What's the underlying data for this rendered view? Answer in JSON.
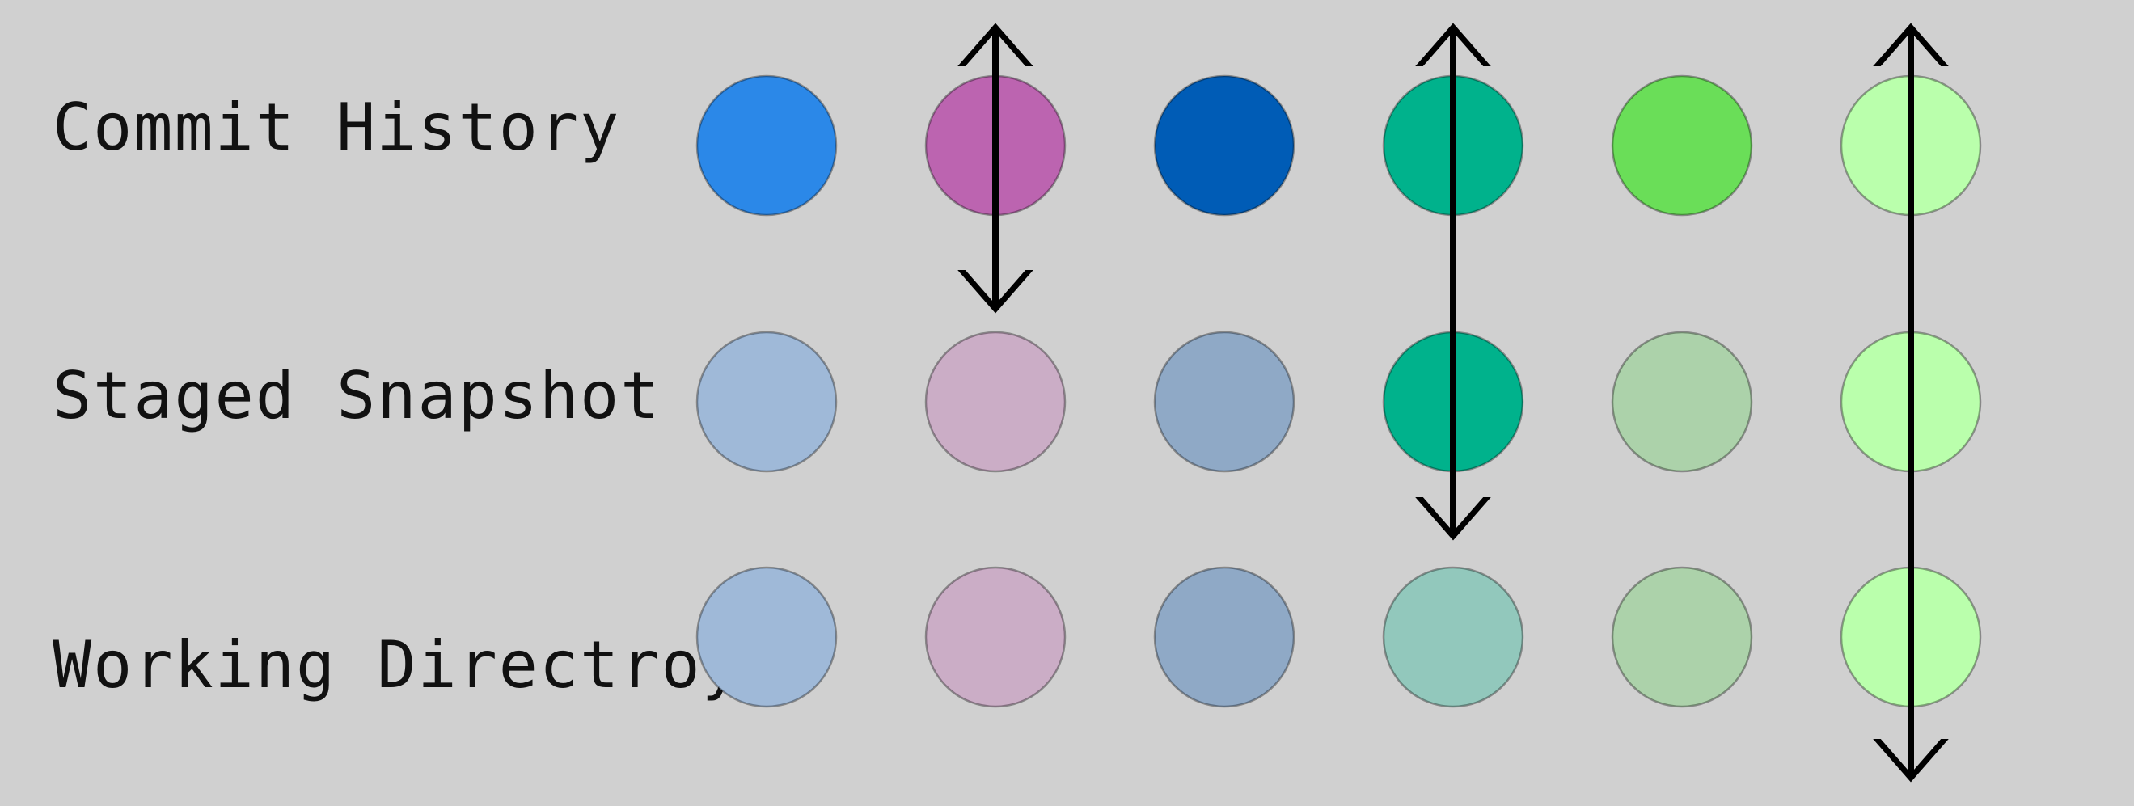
{
  "rows": [
    {
      "label": "Commit History",
      "circles": [
        "#2b88e8",
        "#bc64b0",
        "#005cb6",
        "#00b28c",
        "#6ade58",
        "#baffac"
      ]
    },
    {
      "label": "Staged Snapshot",
      "circles": [
        "#9fb9d8",
        "#cbadc6",
        "#8fa9c6",
        "#00b28c",
        "#acd2aa",
        "#baffac"
      ]
    },
    {
      "label": "Working Directroy",
      "circles": [
        "#9fb9d8",
        "#cbadc6",
        "#8fa9c6",
        "#92c8bc",
        "#acd2aa",
        "#baffac"
      ]
    }
  ],
  "arrows": [
    {
      "column": 2,
      "from_row": 1,
      "to_row": 2,
      "style": "double-headed"
    },
    {
      "column": 4,
      "from_row": 1,
      "to_row": 2,
      "style": "double-headed"
    },
    {
      "column": 6,
      "from_row": 1,
      "to_row": 3,
      "style": "double-headed"
    }
  ],
  "colors": {
    "background": "#d0d0d0",
    "arrow": "#000000",
    "text": "#111111"
  }
}
